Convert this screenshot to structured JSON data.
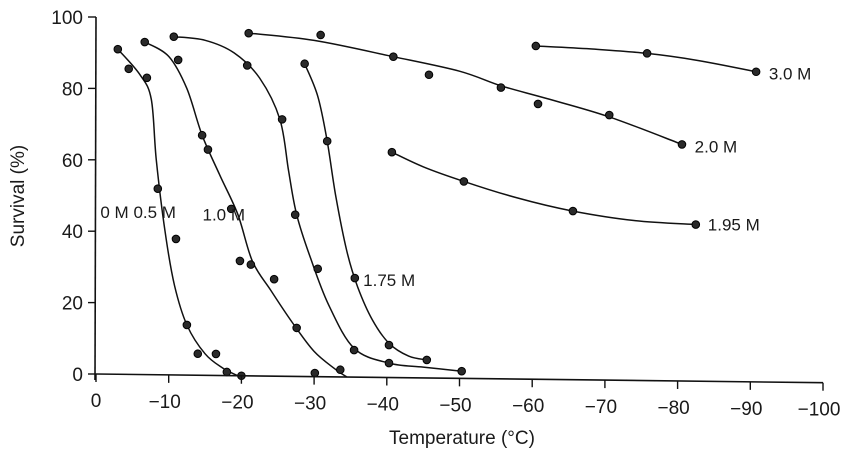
{
  "chart_data": {
    "type": "scatter",
    "title": "",
    "xlabel": "Temperature (°C)",
    "ylabel": "Survival (%)",
    "xlim": [
      0,
      -100
    ],
    "ylim": [
      0,
      100
    ],
    "x_ticks": [
      0,
      -10,
      -20,
      -30,
      -40,
      -50,
      -60,
      -70,
      -80,
      -90,
      -100
    ],
    "x_tick_labels": [
      "0",
      "−10",
      "−20",
      "−30",
      "−40",
      "−50",
      "−60",
      "−70",
      "−80",
      "−90",
      "−100"
    ],
    "y_ticks": [
      0,
      20,
      40,
      60,
      80,
      100
    ],
    "y_tick_labels": [
      "0",
      "20",
      "40",
      "60",
      "80",
      "100"
    ],
    "grid": false,
    "legend": "inline labels next to curves",
    "series": [
      {
        "name": "0 M",
        "label": "0 M",
        "points": [
          [
            -3,
            91
          ],
          [
            -4.5,
            85.5
          ],
          [
            -7,
            83
          ],
          [
            -8.5,
            52
          ],
          [
            -11,
            38
          ],
          [
            -12.5,
            14
          ],
          [
            -14,
            6
          ],
          [
            -16.5,
            6
          ],
          [
            -18,
            1
          ],
          [
            -20,
            0
          ]
        ],
        "curve": [
          [
            -3,
            91
          ],
          [
            -6,
            84
          ],
          [
            -7.6,
            77
          ],
          [
            -8.3,
            60
          ],
          [
            -9.5,
            40
          ],
          [
            -10.8,
            25
          ],
          [
            -12.5,
            14
          ],
          [
            -15,
            6
          ],
          [
            -17.5,
            2
          ],
          [
            -19.5,
            0
          ]
        ]
      },
      {
        "name": "0.5 M",
        "label": "0.5 M",
        "points": [
          [
            -6.7,
            93
          ],
          [
            -11.3,
            88
          ],
          [
            -14.6,
            67
          ],
          [
            -15.4,
            63
          ],
          [
            -18.6,
            46.5
          ],
          [
            -19.8,
            32
          ],
          [
            -21.3,
            31
          ],
          [
            -24.5,
            27
          ],
          [
            -27.6,
            13.5
          ],
          [
            -30.1,
            1
          ],
          [
            -33.6,
            2
          ]
        ],
        "curve": [
          [
            -6.7,
            93
          ],
          [
            -10,
            89
          ],
          [
            -12.5,
            80
          ],
          [
            -14.6,
            67
          ],
          [
            -17,
            56
          ],
          [
            -19.5,
            45
          ],
          [
            -21.5,
            32
          ],
          [
            -24,
            24
          ],
          [
            -27,
            15
          ],
          [
            -30,
            7
          ],
          [
            -33,
            2
          ],
          [
            -34.5,
            0
          ]
        ]
      },
      {
        "name": "1.0 M",
        "label": "1.0 M",
        "points": [
          [
            -10.7,
            94.5
          ],
          [
            -20.8,
            86.5
          ],
          [
            -25.6,
            71.5
          ],
          [
            -27.4,
            45
          ],
          [
            -30.5,
            30
          ],
          [
            -35.5,
            7.5
          ],
          [
            -40.3,
            4
          ],
          [
            -50.3,
            2
          ]
        ],
        "curve": [
          [
            -10.7,
            94.5
          ],
          [
            -15,
            93.5
          ],
          [
            -19,
            90
          ],
          [
            -22.5,
            83
          ],
          [
            -25.3,
            71.5
          ],
          [
            -26.5,
            57
          ],
          [
            -27.6,
            45
          ],
          [
            -29.5,
            33
          ],
          [
            -32,
            20
          ],
          [
            -35.5,
            8
          ],
          [
            -40.3,
            4
          ],
          [
            -45,
            3
          ],
          [
            -50.3,
            2
          ]
        ]
      },
      {
        "name": "1.75 M",
        "label": "1.75 M",
        "points": [
          [
            -28.7,
            87
          ],
          [
            -31.8,
            65.5
          ],
          [
            -35.6,
            27.5
          ],
          [
            -40.3,
            9
          ],
          [
            -45.5,
            5
          ]
        ],
        "curve": [
          [
            -28.7,
            87
          ],
          [
            -30.5,
            78
          ],
          [
            -31.8,
            65.5
          ],
          [
            -33,
            50
          ],
          [
            -34.5,
            35
          ],
          [
            -36,
            25
          ],
          [
            -38,
            16
          ],
          [
            -40.3,
            9.5
          ],
          [
            -43,
            6
          ],
          [
            -45.5,
            5
          ]
        ]
      },
      {
        "name": "1.95 M",
        "label": "1.95 M",
        "points": [
          [
            -40.7,
            62.5
          ],
          [
            -50.6,
            54.5
          ],
          [
            -65.6,
            46.5
          ],
          [
            -82.5,
            43
          ]
        ],
        "curve": [
          [
            -40.7,
            62.5
          ],
          [
            -45,
            58.5
          ],
          [
            -50.6,
            54.5
          ],
          [
            -58,
            50
          ],
          [
            -65.6,
            46.5
          ],
          [
            -74,
            44
          ],
          [
            -82.5,
            43
          ]
        ]
      },
      {
        "name": "2.0 M",
        "label": "2.0 M",
        "points": [
          [
            -21,
            95.5
          ],
          [
            -30.9,
            95
          ],
          [
            -40.9,
            89
          ],
          [
            -45.8,
            84
          ],
          [
            -55.7,
            80.5
          ],
          [
            -60.8,
            76
          ],
          [
            -70.6,
            73
          ],
          [
            -80.6,
            65
          ]
        ],
        "curve": [
          [
            -21,
            95.5
          ],
          [
            -30,
            93.5
          ],
          [
            -40.9,
            89
          ],
          [
            -50,
            85
          ],
          [
            -55.7,
            81
          ],
          [
            -62,
            77.5
          ],
          [
            -70.6,
            72.5
          ],
          [
            -80.6,
            65
          ]
        ]
      },
      {
        "name": "3.0 M",
        "label": "3.0 M",
        "points": [
          [
            -60.5,
            92
          ],
          [
            -75.8,
            90
          ],
          [
            -90.8,
            85
          ]
        ],
        "curve": [
          [
            -60.5,
            92
          ],
          [
            -68,
            91.2
          ],
          [
            -75.8,
            90
          ],
          [
            -83,
            88
          ],
          [
            -90.8,
            85
          ]
        ]
      }
    ],
    "label_positions": {
      "0 M": [
        -4.5,
        45.5
      ],
      "0.5 M": [
        -11,
        45.5
      ],
      "1.0 M": [
        -20.5,
        45
      ],
      "1.75 M": [
        -36.2,
        27
      ],
      "1.95 M": [
        -83.6,
        43
      ],
      "2.0 M": [
        -81.8,
        64.5
      ],
      "3.0 M": [
        -92,
        84.5
      ]
    }
  }
}
